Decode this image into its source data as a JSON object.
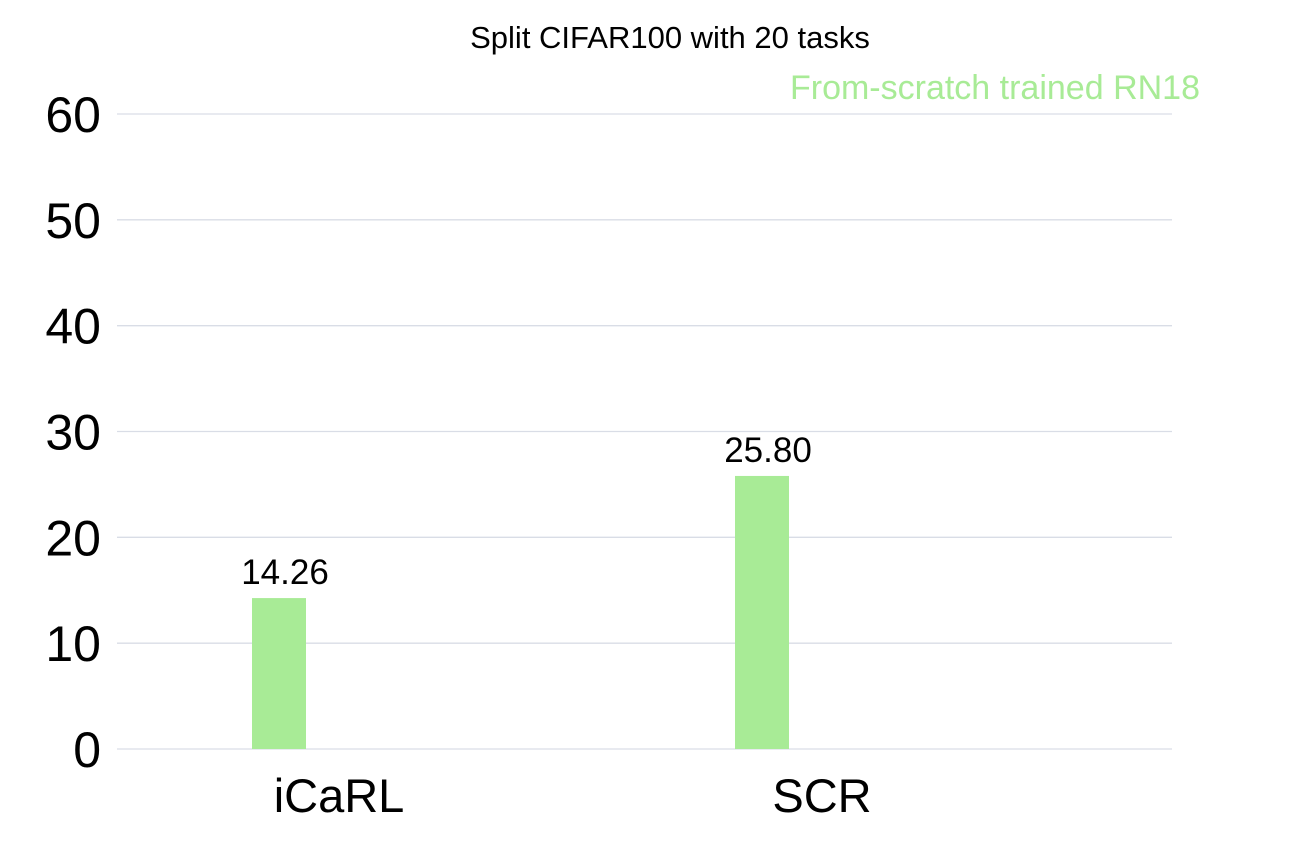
{
  "chart_data": {
    "type": "bar",
    "title": "Split CIFAR100 with 20 tasks",
    "categories": [
      "iCaRL",
      "SCR"
    ],
    "series": [
      {
        "name": "From-scratch trained RN18",
        "values": [
          14.26,
          25.8
        ],
        "labels": [
          "14.26",
          "25.80"
        ]
      }
    ],
    "ylim": [
      0,
      60
    ],
    "yticks": [
      0,
      10,
      20,
      30,
      40,
      50,
      60
    ],
    "grid": true,
    "legend_position": "top-right",
    "xlabel": "",
    "ylabel": ""
  },
  "colors": {
    "bar": "#a8eb96",
    "legend_text": "#a8eb96",
    "grid": "#d9dde6"
  }
}
